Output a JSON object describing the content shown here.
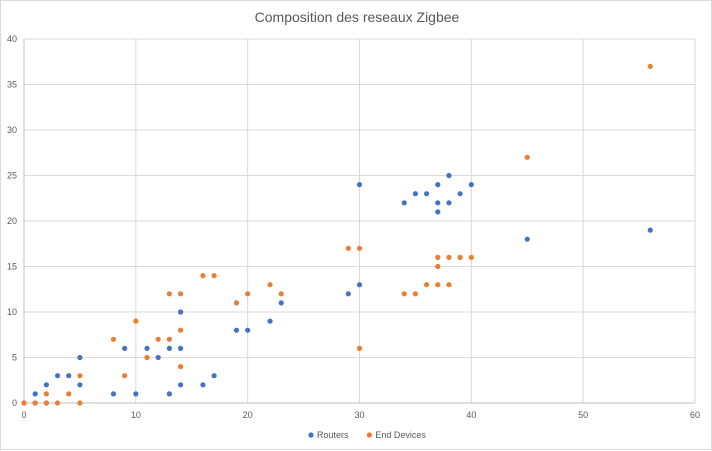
{
  "chart_data": {
    "type": "scatter",
    "title": "Composition des reseaux Zigbee",
    "xlabel": "",
    "ylabel": "",
    "xlim": [
      0,
      60
    ],
    "ylim": [
      0,
      40
    ],
    "x_ticks": [
      0,
      10,
      20,
      30,
      40,
      50,
      60
    ],
    "y_ticks": [
      0,
      5,
      10,
      15,
      20,
      25,
      30,
      35,
      40
    ],
    "grid": true,
    "legend_position": "bottom",
    "series": [
      {
        "name": "Routers",
        "color": "#4472c4",
        "points": [
          [
            0,
            0
          ],
          [
            1,
            1
          ],
          [
            1,
            0
          ],
          [
            2,
            2
          ],
          [
            2,
            0
          ],
          [
            3,
            3
          ],
          [
            4,
            3
          ],
          [
            5,
            5
          ],
          [
            5,
            2
          ],
          [
            8,
            1
          ],
          [
            9,
            6
          ],
          [
            10,
            1
          ],
          [
            11,
            6
          ],
          [
            12,
            5
          ],
          [
            13,
            6
          ],
          [
            13,
            1
          ],
          [
            14,
            10
          ],
          [
            14,
            6
          ],
          [
            14,
            2
          ],
          [
            16,
            2
          ],
          [
            17,
            3
          ],
          [
            19,
            8
          ],
          [
            20,
            8
          ],
          [
            22,
            9
          ],
          [
            23,
            11
          ],
          [
            29,
            12
          ],
          [
            30,
            24
          ],
          [
            30,
            13
          ],
          [
            34,
            22
          ],
          [
            35,
            23
          ],
          [
            36,
            23
          ],
          [
            37,
            24
          ],
          [
            37,
            22
          ],
          [
            37,
            21
          ],
          [
            38,
            25
          ],
          [
            38,
            22
          ],
          [
            39,
            23
          ],
          [
            40,
            24
          ],
          [
            45,
            18
          ],
          [
            56,
            19
          ]
        ]
      },
      {
        "name": "End Devices",
        "color": "#ed7d31",
        "points": [
          [
            0,
            0
          ],
          [
            1,
            0
          ],
          [
            2,
            1
          ],
          [
            2,
            0
          ],
          [
            3,
            0
          ],
          [
            4,
            1
          ],
          [
            5,
            3
          ],
          [
            5,
            0
          ],
          [
            8,
            7
          ],
          [
            9,
            3
          ],
          [
            10,
            9
          ],
          [
            11,
            5
          ],
          [
            12,
            7
          ],
          [
            13,
            12
          ],
          [
            13,
            7
          ],
          [
            14,
            12
          ],
          [
            14,
            8
          ],
          [
            14,
            4
          ],
          [
            16,
            14
          ],
          [
            17,
            14
          ],
          [
            19,
            11
          ],
          [
            20,
            12
          ],
          [
            22,
            13
          ],
          [
            23,
            12
          ],
          [
            29,
            17
          ],
          [
            30,
            17
          ],
          [
            30,
            6
          ],
          [
            34,
            12
          ],
          [
            35,
            12
          ],
          [
            36,
            13
          ],
          [
            37,
            16
          ],
          [
            37,
            15
          ],
          [
            37,
            13
          ],
          [
            38,
            16
          ],
          [
            38,
            13
          ],
          [
            39,
            16
          ],
          [
            40,
            16
          ],
          [
            45,
            27
          ],
          [
            56,
            37
          ]
        ]
      }
    ]
  }
}
